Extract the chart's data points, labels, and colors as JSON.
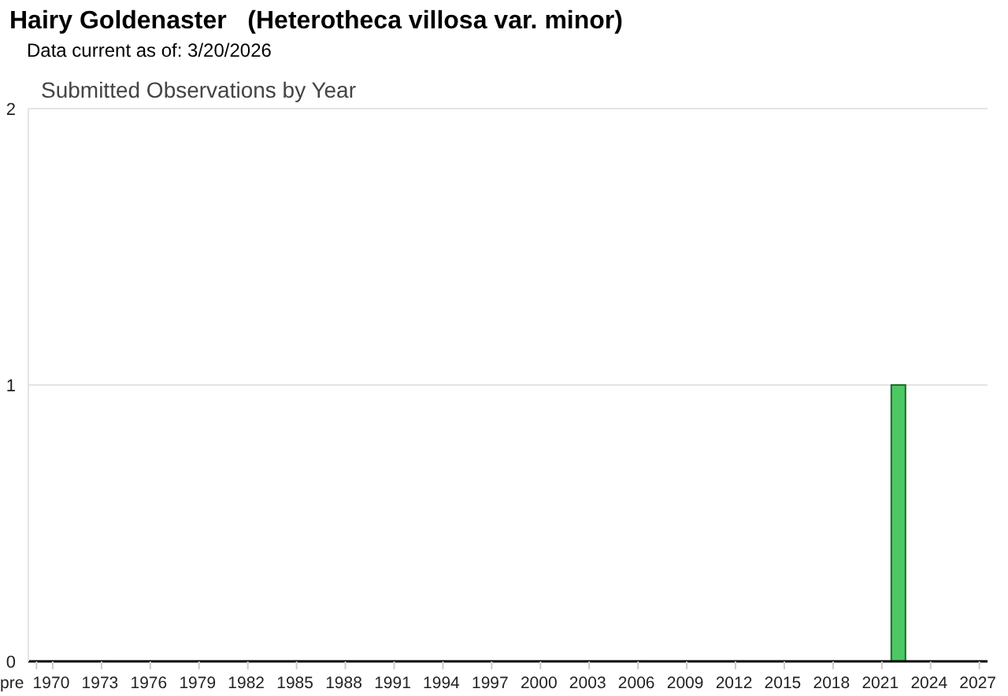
{
  "chart_data": {
    "type": "bar",
    "title": "Hairy Goldenaster   (Heterotheca villosa var. minor)",
    "subtitle": "Data current as of: 3/20/2026",
    "annotations": [
      "Submitted Observations by Year"
    ],
    "categories": [
      "pre",
      "1970",
      null,
      null,
      "1973",
      null,
      null,
      "1976",
      null,
      null,
      "1979",
      null,
      null,
      "1982",
      null,
      null,
      "1985",
      null,
      null,
      "1988",
      null,
      null,
      "1991",
      null,
      null,
      "1994",
      null,
      null,
      "1997",
      null,
      null,
      "2000",
      null,
      null,
      "2003",
      null,
      null,
      "2006",
      null,
      null,
      "2009",
      null,
      null,
      "2012",
      null,
      null,
      "2015",
      null,
      null,
      "2018",
      null,
      null,
      "2021",
      null,
      null,
      "2024",
      null,
      null,
      "2027"
    ],
    "values": [
      0,
      0,
      0,
      0,
      0,
      0,
      0,
      0,
      0,
      0,
      0,
      0,
      0,
      0,
      0,
      0,
      0,
      0,
      0,
      0,
      0,
      0,
      0,
      0,
      0,
      0,
      0,
      0,
      0,
      0,
      0,
      0,
      0,
      0,
      0,
      0,
      0,
      0,
      0,
      0,
      0,
      0,
      0,
      0,
      0,
      0,
      0,
      0,
      0,
      0,
      0,
      0,
      0,
      1,
      0,
      0,
      0,
      0,
      0
    ],
    "color": "#4cc864",
    "ylim": [
      0,
      2
    ],
    "yticks": [
      0,
      1,
      2
    ],
    "grid": "y"
  }
}
